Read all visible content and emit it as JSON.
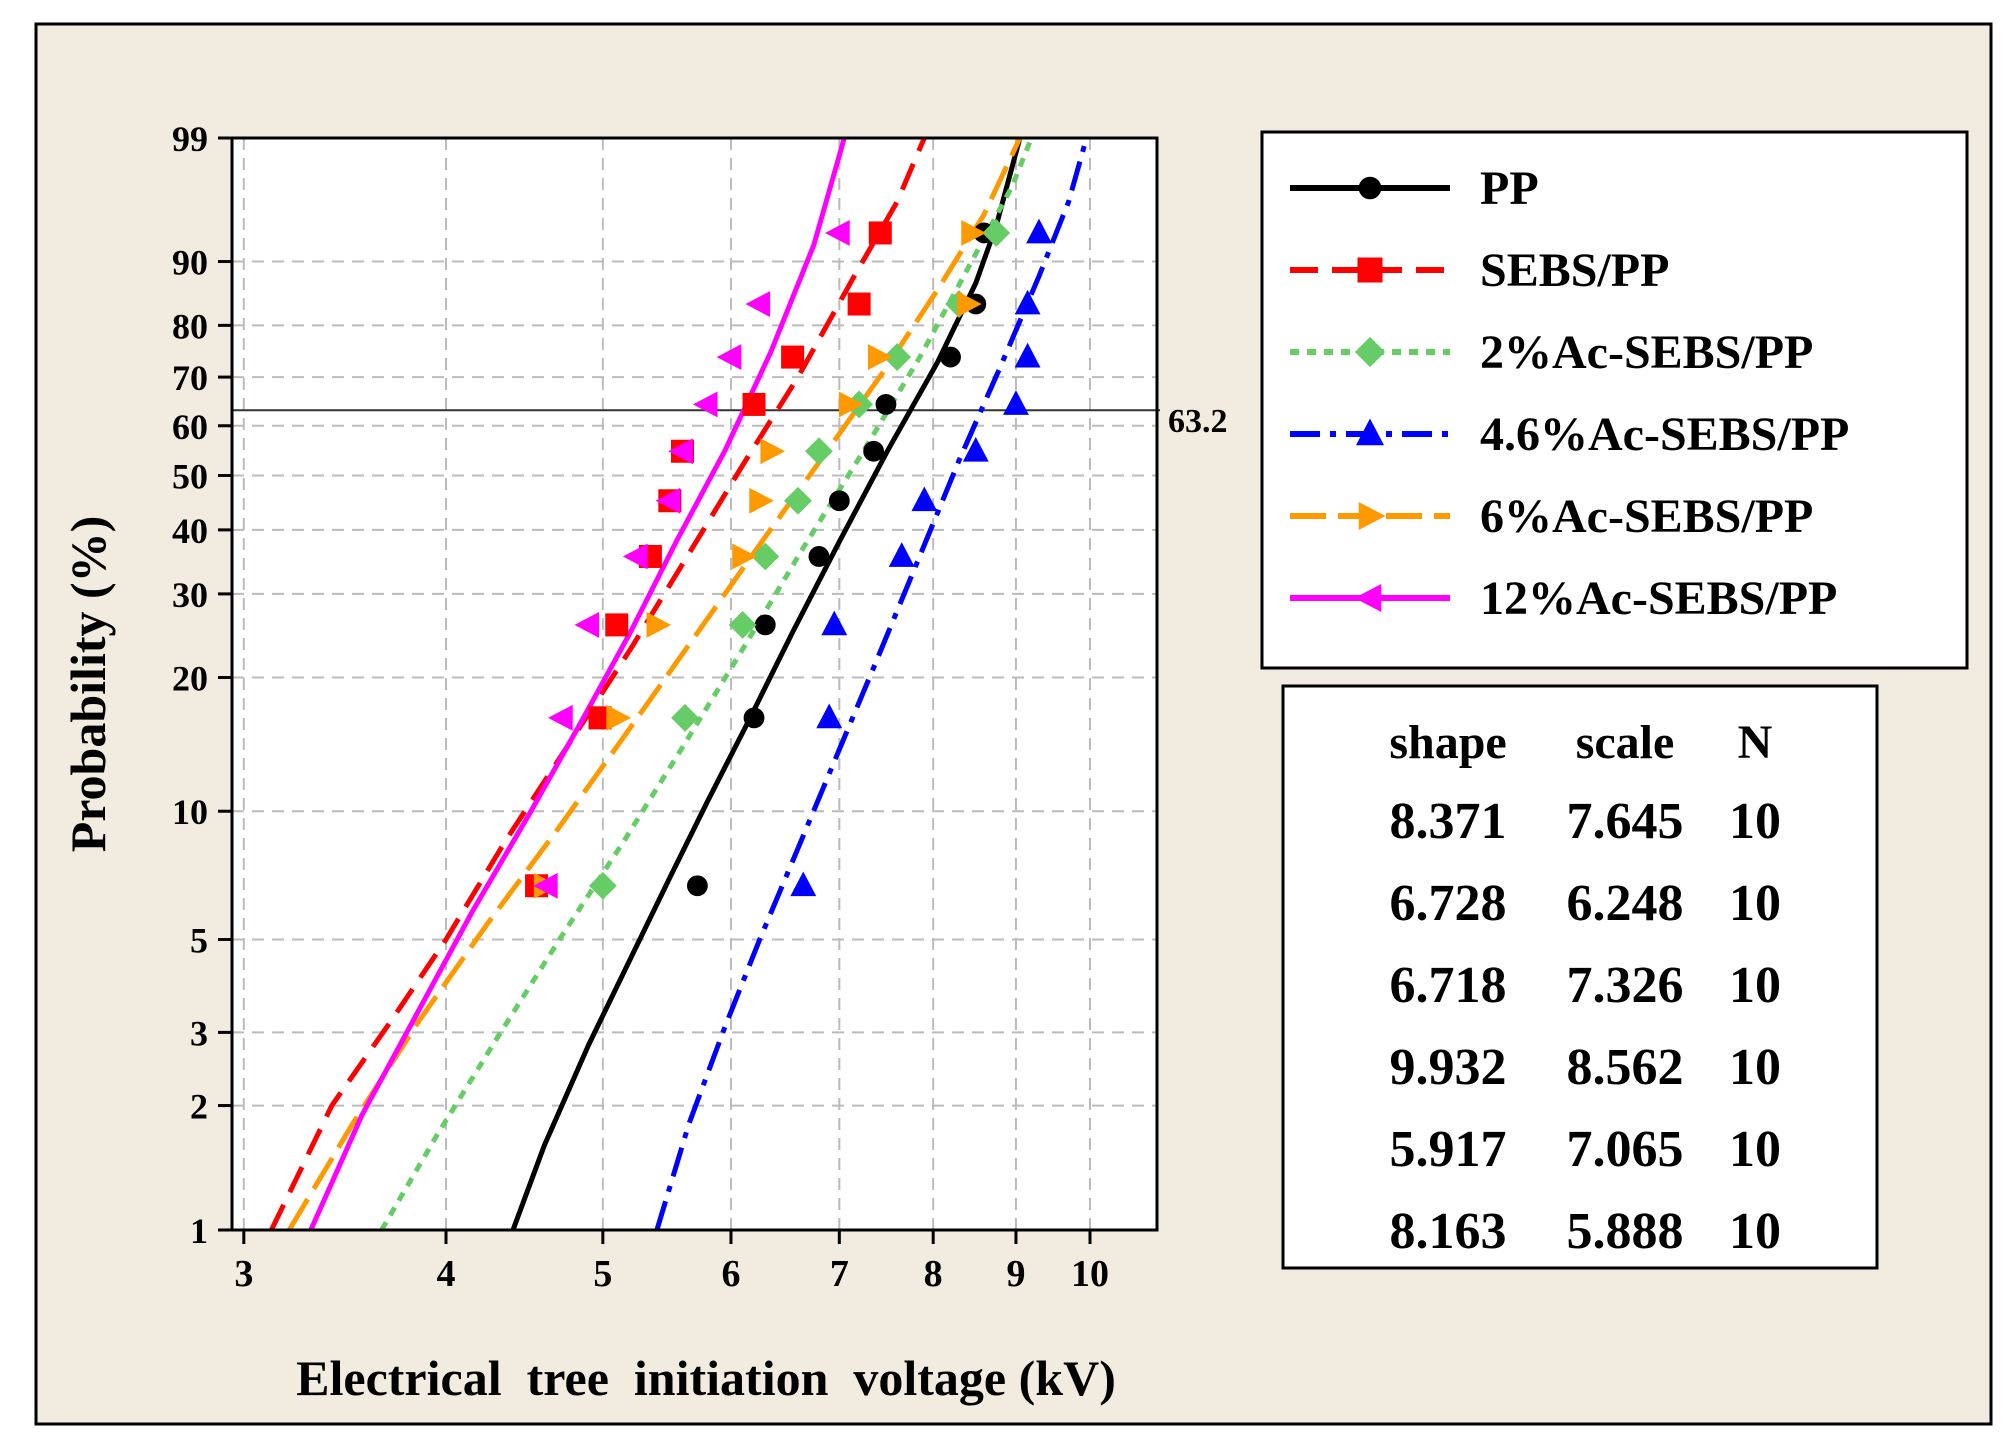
{
  "chart_data": {
    "type": "line",
    "title": "",
    "xlabel": "Electrical  tree  initiation  voltage (kV)",
    "ylabel": "Probability (%)",
    "x_scale": "log",
    "y_scale": "weibull",
    "xlim": [
      2.95,
      11.0
    ],
    "ylim": [
      1,
      99
    ],
    "x_ticks": [
      3,
      4,
      5,
      6,
      7,
      8,
      9,
      10
    ],
    "y_ticks": [
      1,
      2,
      3,
      5,
      10,
      20,
      30,
      40,
      50,
      60,
      70,
      80,
      90,
      99
    ],
    "grid": true,
    "reference_line": {
      "y": 63.2,
      "label": "63.2"
    },
    "legend_position": "right",
    "series": [
      {
        "name": "PP",
        "color": "#000000",
        "dash": "solid",
        "marker": "circle",
        "shape": 8.371,
        "scale": 7.645,
        "fit_x": [
          4.4,
          4.6,
          4.9,
          5.2,
          5.5,
          5.8,
          6.15,
          6.55,
          7.0,
          7.5,
          8.05,
          8.5,
          8.75,
          9.05
        ],
        "fit_y": [
          1,
          1.6,
          2.8,
          4.5,
          7,
          10.5,
          16,
          25,
          38,
          55,
          73,
          87,
          94,
          99
        ],
        "points": [
          [
            5.72,
            6.7
          ],
          [
            6.2,
            16.3
          ],
          [
            6.3,
            25.9
          ],
          [
            6.8,
            35.6
          ],
          [
            7.0,
            45.2
          ],
          [
            7.35,
            54.8
          ],
          [
            7.48,
            64.4
          ],
          [
            8.2,
            74.0
          ],
          [
            8.5,
            83.7
          ],
          [
            8.6,
            93.3
          ]
        ]
      },
      {
        "name": "SEBS/PP",
        "color": "#ff0000",
        "dash": "dash",
        "marker": "square",
        "shape": 6.728,
        "scale": 6.248,
        "fit_x": [
          3.12,
          3.4,
          3.7,
          4.0,
          4.35,
          4.75,
          5.2,
          5.65,
          6.1,
          6.6,
          7.15,
          7.6,
          7.9
        ],
        "fit_y": [
          1,
          2,
          3.2,
          5,
          8.5,
          14,
          23,
          36,
          52,
          70,
          88,
          96,
          99
        ],
        "points": [
          [
            4.55,
            6.7
          ],
          [
            4.98,
            16.3
          ],
          [
            5.1,
            25.9
          ],
          [
            5.35,
            35.6
          ],
          [
            5.5,
            45.2
          ],
          [
            5.6,
            54.8
          ],
          [
            6.2,
            64.4
          ],
          [
            6.55,
            74.0
          ],
          [
            7.2,
            83.7
          ],
          [
            7.42,
            93.3
          ]
        ]
      },
      {
        "name": "2%Ac-SEBS/PP",
        "color": "#66cc66",
        "dash": "dot",
        "marker": "diamond",
        "shape": 6.718,
        "scale": 7.326,
        "fit_x": [
          3.65,
          3.95,
          4.3,
          4.7,
          5.15,
          5.6,
          6.1,
          6.65,
          7.25,
          7.85,
          8.45,
          8.95,
          9.2
        ],
        "fit_y": [
          1,
          1.7,
          2.9,
          5,
          8.5,
          14,
          23,
          37,
          55,
          74,
          90,
          97,
          99
        ],
        "points": [
          [
            5.0,
            6.7
          ],
          [
            5.62,
            16.3
          ],
          [
            6.1,
            25.9
          ],
          [
            6.3,
            35.6
          ],
          [
            6.6,
            45.2
          ],
          [
            6.8,
            54.8
          ],
          [
            7.2,
            64.4
          ],
          [
            7.6,
            74.0
          ],
          [
            8.3,
            83.7
          ],
          [
            8.75,
            93.3
          ]
        ]
      },
      {
        "name": "4.6%Ac-SEBS/PP",
        "color": "#0000ff",
        "dash": "dashdot",
        "marker": "triangle-up",
        "shape": 9.932,
        "scale": 8.562,
        "fit_x": [
          5.4,
          5.65,
          5.95,
          6.25,
          6.6,
          6.95,
          7.35,
          7.8,
          8.3,
          8.8,
          9.3,
          9.7,
          9.95
        ],
        "fit_y": [
          1,
          1.8,
          3.1,
          5,
          8.2,
          13,
          21,
          34,
          53,
          72,
          88,
          96,
          99
        ],
        "points": [
          [
            6.65,
            6.7
          ],
          [
            6.9,
            16.3
          ],
          [
            6.95,
            25.9
          ],
          [
            7.65,
            35.6
          ],
          [
            7.9,
            45.2
          ],
          [
            8.5,
            54.8
          ],
          [
            9.0,
            64.4
          ],
          [
            9.15,
            74.0
          ],
          [
            9.15,
            83.7
          ],
          [
            9.3,
            93.3
          ]
        ]
      },
      {
        "name": "6%Ac-SEBS/PP",
        "color": "#ff9900",
        "dash": "longdash",
        "marker": "triangle-right",
        "shape": 5.917,
        "scale": 7.065,
        "fit_x": [
          3.2,
          3.5,
          3.85,
          4.25,
          4.7,
          5.2,
          5.7,
          6.25,
          6.85,
          7.45,
          8.05,
          8.6,
          9.05
        ],
        "fit_y": [
          1,
          1.8,
          3.2,
          5.5,
          9.2,
          15.5,
          24.5,
          37.5,
          54,
          71,
          86,
          95,
          99
        ],
        "points": [
          [
            4.6,
            6.7
          ],
          [
            5.1,
            16.3
          ],
          [
            5.4,
            25.9
          ],
          [
            6.1,
            35.6
          ],
          [
            6.25,
            45.2
          ],
          [
            6.35,
            54.8
          ],
          [
            7.1,
            64.4
          ],
          [
            7.4,
            74.0
          ],
          [
            8.4,
            83.7
          ],
          [
            8.45,
            93.3
          ]
        ]
      },
      {
        "name": "12%Ac-SEBS/PP",
        "color": "#ff00ff",
        "dash": "solid",
        "marker": "triangle-left",
        "shape": 8.163,
        "scale": 5.888,
        "fit_x": [
          3.3,
          3.55,
          3.85,
          4.15,
          4.5,
          4.85,
          5.2,
          5.55,
          5.95,
          6.35,
          6.75,
          7.05
        ],
        "fit_y": [
          1,
          1.9,
          3.4,
          5.8,
          9.8,
          16,
          25,
          38,
          55,
          75,
          92,
          99
        ],
        "points": [
          [
            4.62,
            6.7
          ],
          [
            4.72,
            16.3
          ],
          [
            4.9,
            25.9
          ],
          [
            5.25,
            35.6
          ],
          [
            5.5,
            45.2
          ],
          [
            5.6,
            54.8
          ],
          [
            5.8,
            64.4
          ],
          [
            6.0,
            74.0
          ],
          [
            6.25,
            83.7
          ],
          [
            7.0,
            93.3
          ]
        ]
      }
    ],
    "stats_table": {
      "headers": [
        "shape",
        "scale",
        "N"
      ],
      "rows": [
        [
          "8.371",
          "7.645",
          "10"
        ],
        [
          "6.728",
          "6.248",
          "10"
        ],
        [
          "6.718",
          "7.326",
          "10"
        ],
        [
          "9.932",
          "8.562",
          "10"
        ],
        [
          "5.917",
          "7.065",
          "10"
        ],
        [
          "8.163",
          "5.888",
          "10"
        ]
      ]
    }
  },
  "colors": {
    "background": "#f1ebe0",
    "plot_area": "#ffffff",
    "grid": "#bbbbbb",
    "frame": "#000000"
  }
}
